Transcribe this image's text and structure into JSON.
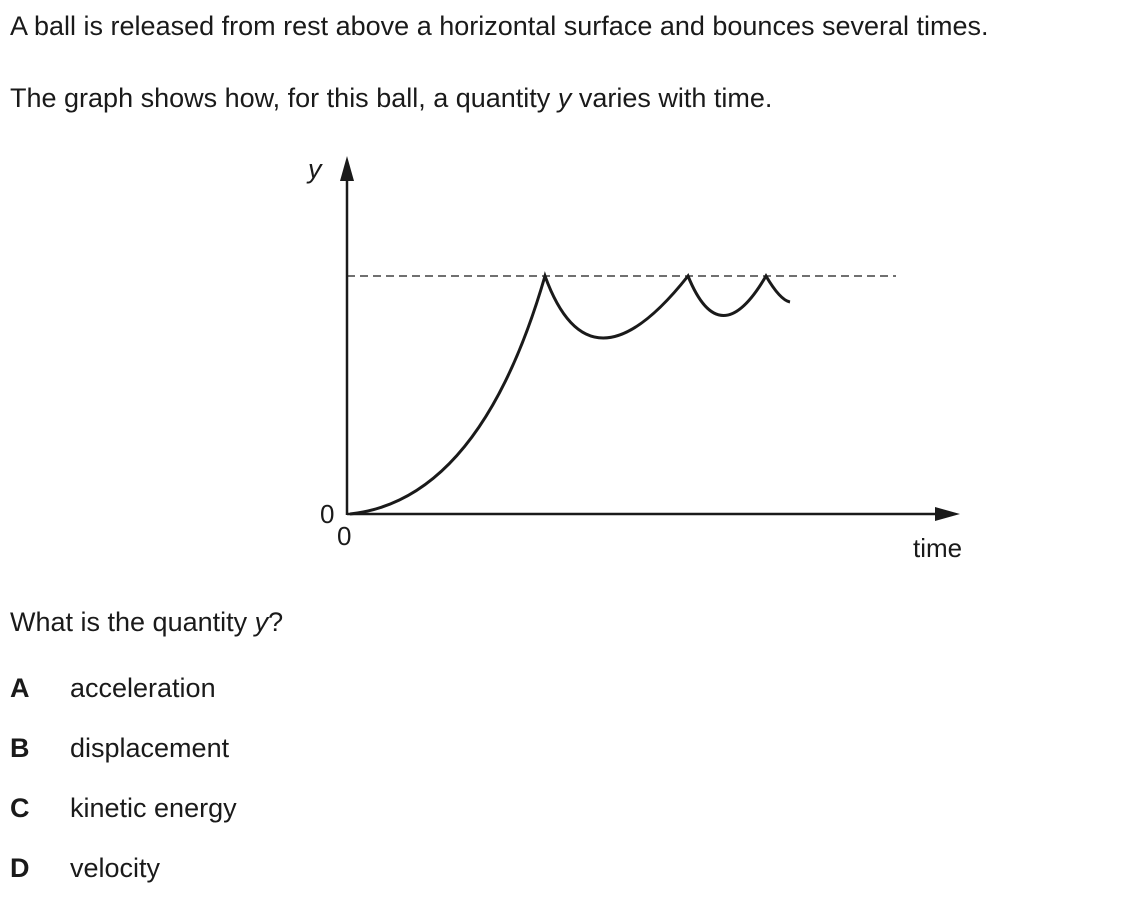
{
  "question": {
    "intro": "A ball is released from rest above a horizontal surface and bounces several times.",
    "graph_intro_pre": "The graph shows how, for this ball, a quantity ",
    "graph_intro_var": "y",
    "graph_intro_post": " varies with time.",
    "prompt_pre": "What is the quantity ",
    "prompt_var": "y",
    "prompt_post": "?"
  },
  "graph": {
    "y_axis_label": "y",
    "x_axis_label": "time",
    "y_origin_label": "0",
    "x_origin_label": "0"
  },
  "options": [
    {
      "letter": "A",
      "text": "acceleration"
    },
    {
      "letter": "B",
      "text": "displacement"
    },
    {
      "letter": "C",
      "text": "kinetic energy"
    },
    {
      "letter": "D",
      "text": "velocity"
    }
  ],
  "colors": {
    "ink": "#1a1a1a"
  }
}
